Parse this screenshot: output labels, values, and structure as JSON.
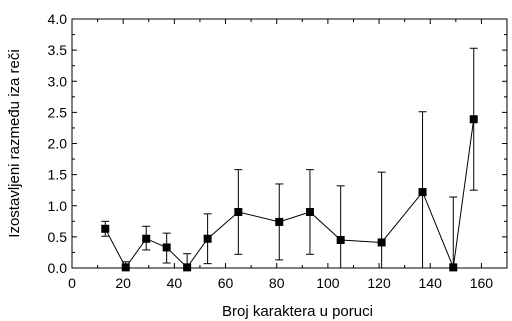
{
  "chart_data": {
    "type": "scatter",
    "xlabel": "Broj karaktera u poruci",
    "ylabel": "Izostavljeni razmeđu iza reči",
    "xlim": [
      0,
      170
    ],
    "ylim": [
      0.0,
      4.0
    ],
    "x_ticks": [
      0,
      20,
      40,
      60,
      80,
      100,
      120,
      140,
      160
    ],
    "y_ticks": [
      "0.0",
      "0.5",
      "1.0",
      "1.5",
      "2.0",
      "2.5",
      "3.0",
      "3.5",
      "4.0"
    ],
    "grid": false,
    "legend": "none",
    "series": [
      {
        "marker": "square",
        "line": true,
        "color": "#000000",
        "points": [
          {
            "x": 13,
            "y": 0.63,
            "err_low": 0.12,
            "err_high": 0.12
          },
          {
            "x": 21,
            "y": 0.01,
            "err_low": 0.01,
            "err_high": 0.09
          },
          {
            "x": 29,
            "y": 0.47,
            "err_low": 0.18,
            "err_high": 0.2
          },
          {
            "x": 37,
            "y": 0.33,
            "err_low": 0.25,
            "err_high": 0.23
          },
          {
            "x": 45,
            "y": 0.01,
            "err_low": 0.01,
            "err_high": 0.22
          },
          {
            "x": 53,
            "y": 0.47,
            "err_low": 0.4,
            "err_high": 0.4
          },
          {
            "x": 65,
            "y": 0.9,
            "err_low": 0.68,
            "err_high": 0.68
          },
          {
            "x": 81,
            "y": 0.74,
            "err_low": 0.61,
            "err_high": 0.61
          },
          {
            "x": 93,
            "y": 0.9,
            "err_low": 0.68,
            "err_high": 0.68
          },
          {
            "x": 105,
            "y": 0.45,
            "err_low": 0.45,
            "err_high": 0.87
          },
          {
            "x": 121,
            "y": 0.41,
            "err_low": 0.41,
            "err_high": 1.13
          },
          {
            "x": 137,
            "y": 1.22,
            "err_low": 1.22,
            "err_high": 1.29
          },
          {
            "x": 149,
            "y": 0.01,
            "err_low": 0.01,
            "err_high": 1.13
          },
          {
            "x": 157,
            "y": 2.39,
            "err_low": 1.14,
            "err_high": 1.14
          }
        ]
      }
    ]
  }
}
